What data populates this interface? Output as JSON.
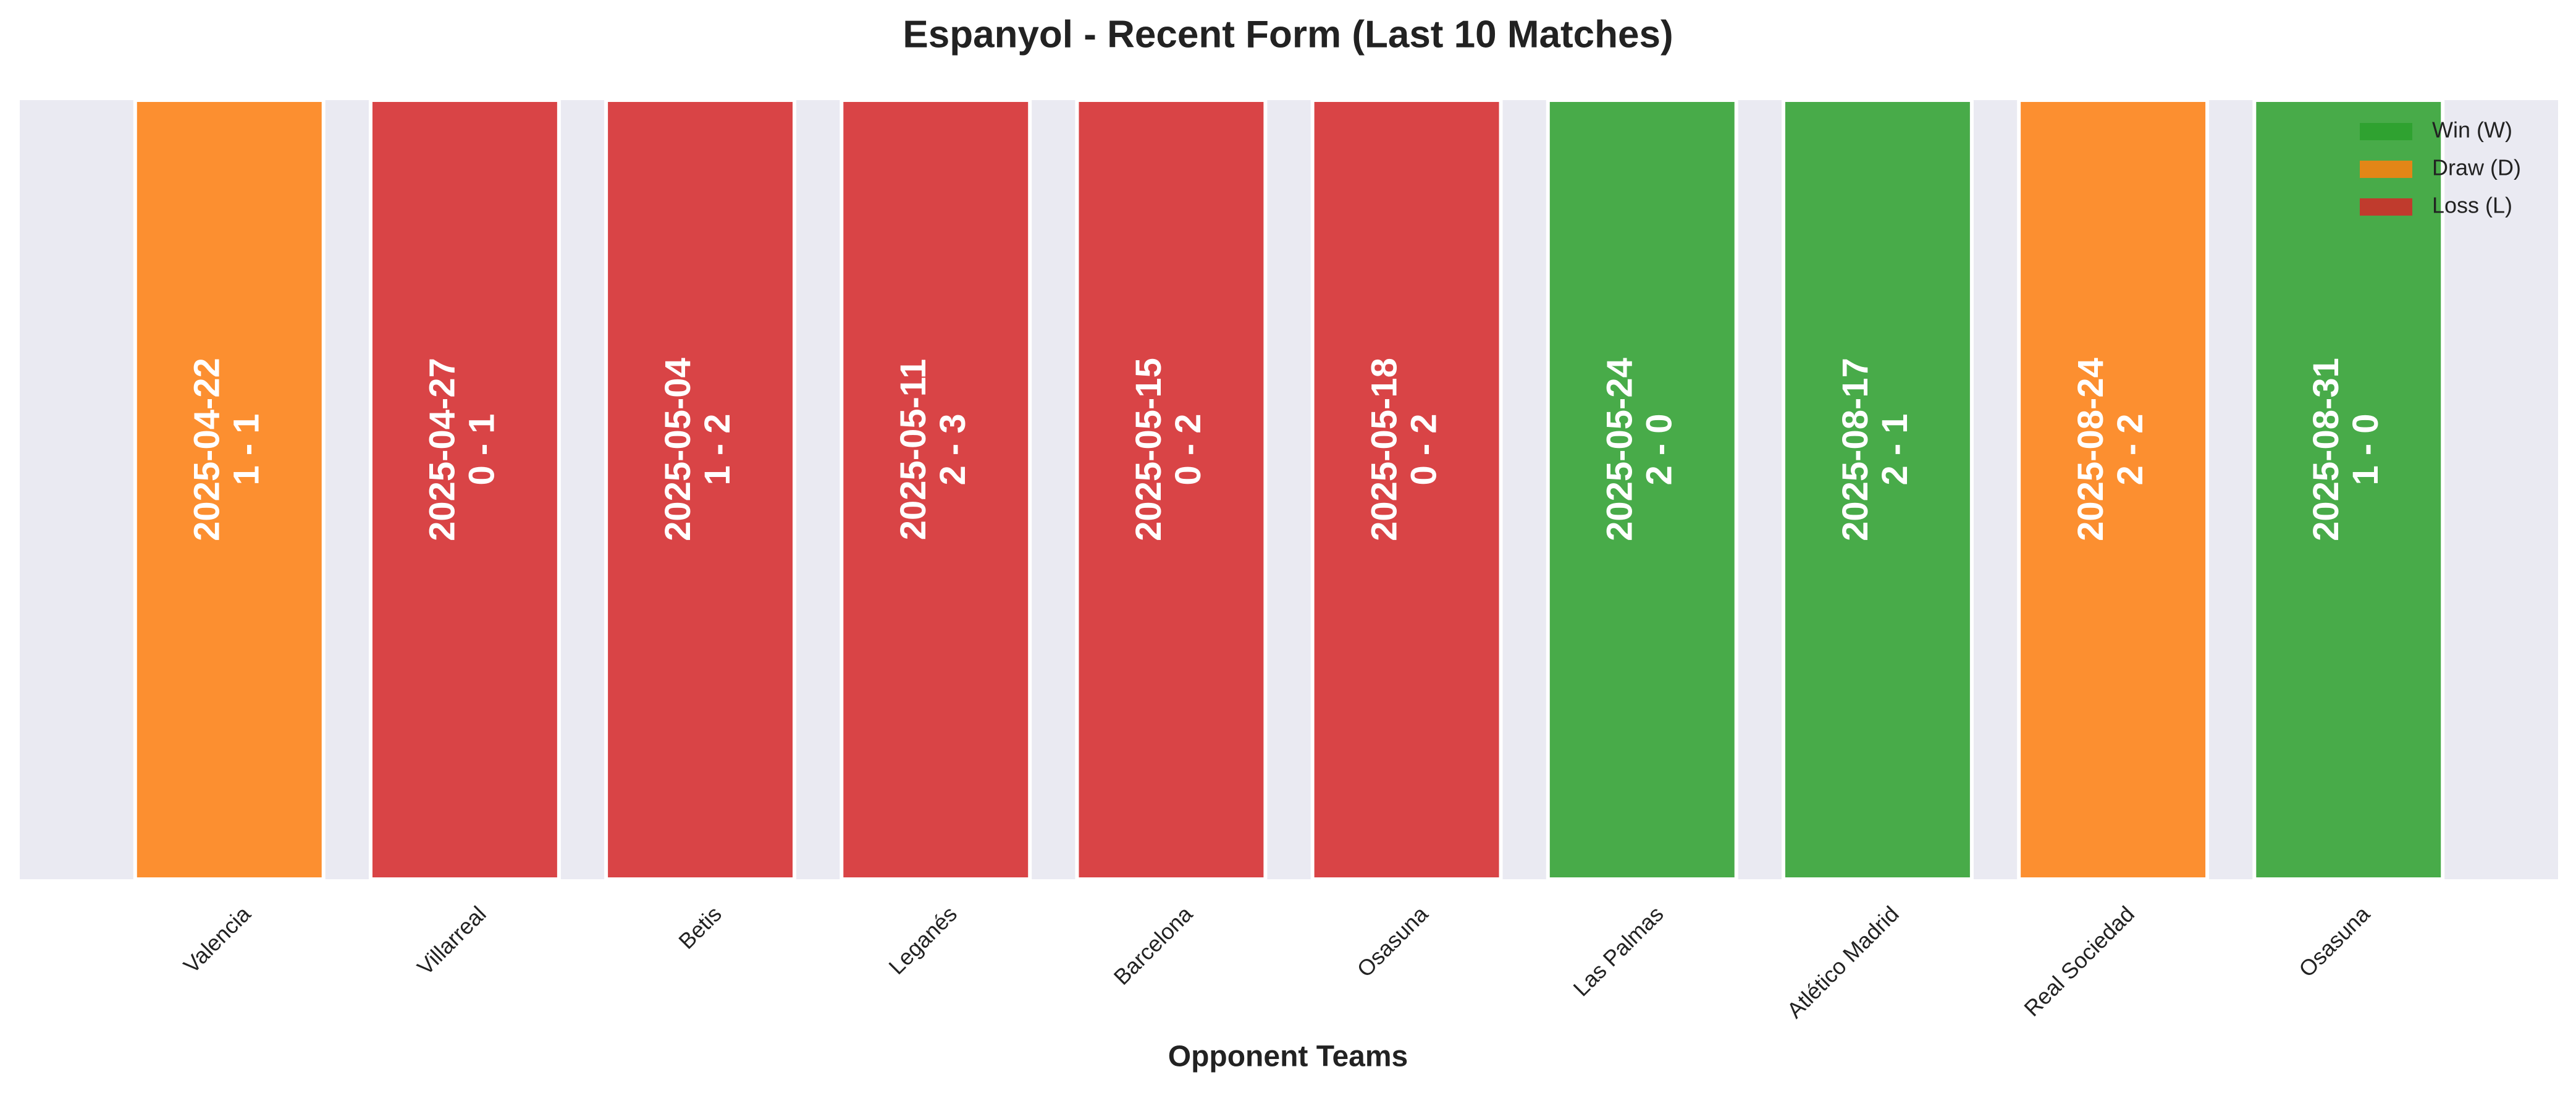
{
  "chart_data": {
    "type": "bar",
    "title": "Espanyol - Recent Form (Last 10 Matches)",
    "x_label": "Opponent Teams",
    "categories": [
      "Valencia",
      "Villarreal",
      "Betis",
      "Leganés",
      "Barcelona",
      "Osasuna",
      "Las Palmas",
      "Atlético Madrid",
      "Real Sociedad",
      "Osasuna"
    ],
    "values": [
      1,
      1,
      1,
      1,
      1,
      1,
      1,
      1,
      1,
      1
    ],
    "dates": [
      "2025-04-22",
      "2025-04-27",
      "2025-05-04",
      "2025-05-11",
      "2025-05-15",
      "2025-05-18",
      "2025-05-24",
      "2025-08-17",
      "2025-08-24",
      "2025-08-31"
    ],
    "scores": [
      "1 - 1",
      "0 - 1",
      "1 - 2",
      "2 - 3",
      "0 - 2",
      "0 - 2",
      "2 - 0",
      "2 - 1",
      "2 - 2",
      "1 - 0"
    ],
    "colors": [
      "#ff7f0e",
      "#d62728",
      "#d62728",
      "#d62728",
      "#d62728",
      "#d62728",
      "#2ca02c",
      "#2ca02c",
      "#ff7f0e",
      "#2ca02c"
    ],
    "ylim": [
      0,
      1
    ],
    "legend": [
      {
        "name": "Win (W)",
        "color": "#2ca02c"
      },
      {
        "name": "Draw (D)",
        "color": "#ff7f0e"
      },
      {
        "name": "Loss (L)",
        "color": "#d62728"
      }
    ],
    "legend_position": "upper right"
  }
}
